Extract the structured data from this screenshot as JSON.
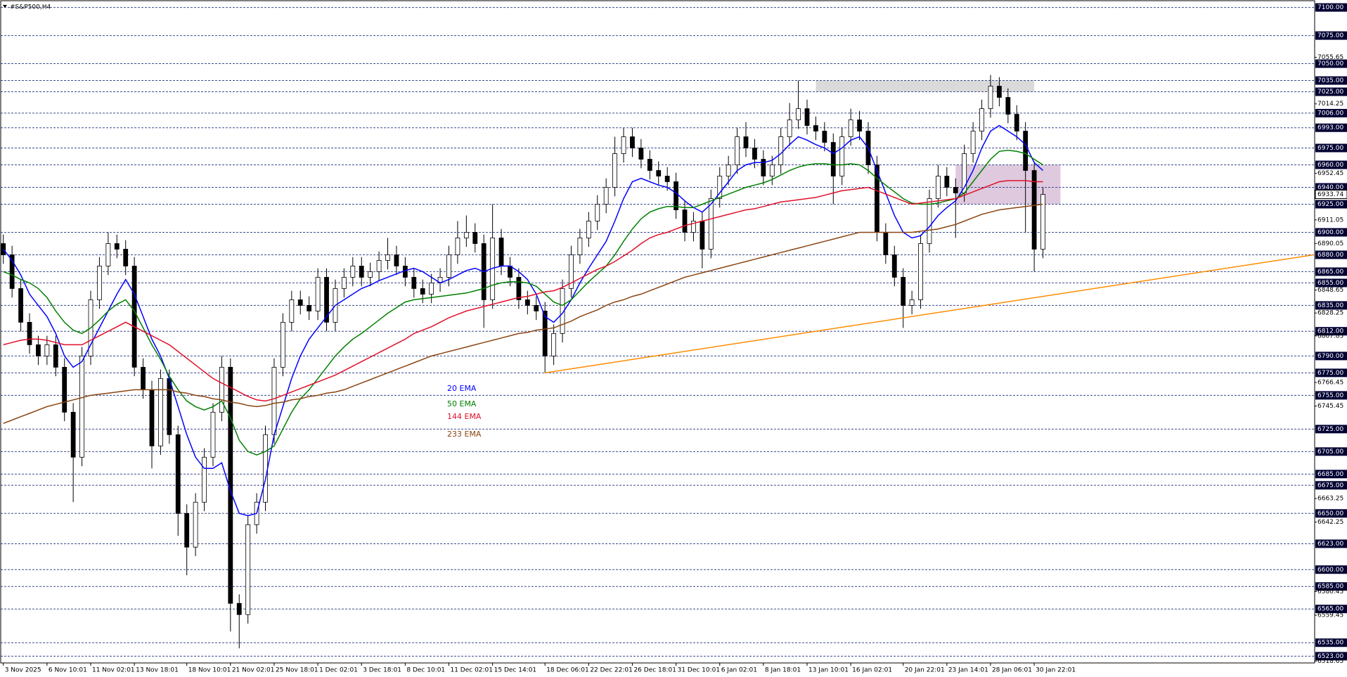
{
  "chart_data": {
    "type": "candlestick",
    "title": "#S&P500,H4",
    "categories": [
      "3 Nov 2025",
      null,
      null,
      null,
      null,
      "6 Nov 10:01",
      null,
      null,
      null,
      null,
      "11 Nov 02:01",
      null,
      null,
      null,
      null,
      "13 Nov 18:01",
      null,
      null,
      null,
      null,
      null,
      "18 Nov 10:01",
      null,
      null,
      null,
      null,
      "21 Nov 02:01",
      null,
      null,
      null,
      null,
      "25 Nov 18:01",
      null,
      null,
      null,
      null,
      "1 Dec 02:01",
      null,
      null,
      null,
      null,
      "3 Dec 18:01",
      null,
      null,
      null,
      null,
      "8 Dec 10:01",
      null,
      null,
      null,
      null,
      "11 Dec 02:01",
      null,
      null,
      null,
      null,
      "15 Dec 14:01",
      null,
      null,
      null,
      null,
      null,
      "18 Dec 06:01",
      null,
      null,
      null,
      null,
      "22 Dec 22:01",
      null,
      null,
      null,
      null,
      "26 Dec 18:01",
      null,
      null,
      null,
      null,
      "31 Dec 10:01",
      null,
      null,
      null,
      null,
      "6 Jan 02:01",
      null,
      null,
      null,
      null,
      "8 Jan 18:01",
      null,
      null,
      null,
      null,
      "13 Jan 10:01",
      null,
      null,
      null,
      null,
      "16 Jan 02:01",
      null,
      null,
      null,
      null,
      null,
      "20 Jan 22:01",
      null,
      null,
      null,
      null,
      "23 Jan 14:01",
      null,
      null,
      null,
      null,
      "28 Jan 06:01",
      null,
      null,
      null,
      null,
      "30 Jan 22:01",
      null
    ],
    "open": [
      6890,
      6880,
      6850,
      6820,
      6800,
      6790,
      6800,
      6780,
      6740,
      6700,
      6790,
      6840,
      6870,
      6890,
      6885,
      6870,
      6780,
      6760,
      6710,
      6770,
      6720,
      6650,
      6620,
      6660,
      6700,
      6740,
      6780,
      6570,
      6560,
      6640,
      6660,
      6720,
      6780,
      6820,
      6840,
      6835,
      6830,
      6860,
      6820,
      6850,
      6860,
      6870,
      6860,
      6865,
      6875,
      6880,
      6870,
      6860,
      6850,
      6845,
      6855,
      6860,
      6880,
      6895,
      6900,
      6890,
      6840,
      6895,
      6870,
      6860,
      6840,
      6835,
      6830,
      6790,
      6810,
      6850,
      6880,
      6895,
      6910,
      6925,
      6940,
      6970,
      6985,
      6975,
      6965,
      6955,
      6950,
      6945,
      6920,
      6900,
      6910,
      6885,
      6930,
      6950,
      6960,
      6985,
      6975,
      6965,
      6950,
      6960,
      6985,
      7000,
      7010,
      6995,
      6990,
      6980,
      6950,
      6985,
      7000,
      6990,
      6960,
      6900,
      6880,
      6860,
      6835,
      6840,
      6890,
      6930,
      6950,
      6940,
      6935,
      6970,
      6990,
      7010,
      7030,
      7020,
      7005,
      6990,
      6955,
      6885
    ],
    "high": [
      6898,
      6888,
      6858,
      6828,
      6808,
      6808,
      6808,
      6788,
      6748,
      6798,
      6848,
      6878,
      6900,
      6898,
      6893,
      6878,
      6788,
      6768,
      6778,
      6778,
      6728,
      6658,
      6668,
      6708,
      6748,
      6790,
      6788,
      6578,
      6648,
      6668,
      6728,
      6788,
      6828,
      6848,
      6848,
      6843,
      6868,
      6868,
      6858,
      6868,
      6878,
      6878,
      6873,
      6883,
      6895,
      6888,
      6878,
      6868,
      6858,
      6863,
      6868,
      6888,
      6910,
      6915,
      6908,
      6898,
      6925,
      6903,
      6878,
      6868,
      6848,
      6843,
      6838,
      6818,
      6858,
      6888,
      6903,
      6918,
      6933,
      6948,
      6985,
      6993,
      6993,
      6983,
      6973,
      6963,
      6958,
      6953,
      6928,
      6918,
      6918,
      6938,
      6958,
      6968,
      6993,
      6998,
      6983,
      6973,
      6968,
      6993,
      7015,
      7035,
      7018,
      7003,
      6998,
      6988,
      6993,
      7010,
      7008,
      6998,
      6968,
      6908,
      6888,
      6868,
      6848,
      6898,
      6938,
      6960,
      6958,
      6948,
      6978,
      6998,
      7018,
      7040,
      7038,
      7028,
      7013,
      6998,
      6963,
      6940
    ],
    "low": [
      6872,
      6842,
      6812,
      6792,
      6782,
      6782,
      6772,
      6732,
      6660,
      6692,
      6782,
      6832,
      6862,
      6877,
      6862,
      6772,
      6752,
      6690,
      6702,
      6712,
      6630,
      6595,
      6612,
      6652,
      6692,
      6732,
      6545,
      6530,
      6552,
      6632,
      6652,
      6712,
      6772,
      6812,
      6827,
      6822,
      6822,
      6812,
      6812,
      6842,
      6852,
      6852,
      6852,
      6857,
      6867,
      6862,
      6852,
      6842,
      6837,
      6837,
      6847,
      6852,
      6872,
      6887,
      6882,
      6815,
      6832,
      6862,
      6852,
      6832,
      6827,
      6822,
      6775,
      6782,
      6802,
      6842,
      6872,
      6887,
      6902,
      6917,
      6932,
      6962,
      6967,
      6957,
      6947,
      6942,
      6937,
      6912,
      6892,
      6892,
      6868,
      6877,
      6922,
      6942,
      6952,
      6967,
      6957,
      6942,
      6942,
      6952,
      6977,
      6992,
      6987,
      6982,
      6972,
      6925,
      6942,
      6977,
      6982,
      6952,
      6892,
      6872,
      6852,
      6815,
      6827,
      6832,
      6882,
      6922,
      6932,
      6895,
      6927,
      6962,
      6982,
      7002,
      7012,
      6997,
      6982,
      6900,
      6865,
      6877
    ],
    "close": [
      6880,
      6850,
      6820,
      6800,
      6790,
      6800,
      6780,
      6740,
      6700,
      6790,
      6840,
      6870,
      6890,
      6885,
      6870,
      6780,
      6760,
      6710,
      6770,
      6720,
      6650,
      6620,
      6660,
      6700,
      6740,
      6780,
      6570,
      6560,
      6640,
      6660,
      6720,
      6780,
      6820,
      6840,
      6835,
      6830,
      6860,
      6820,
      6850,
      6860,
      6870,
      6860,
      6865,
      6875,
      6880,
      6870,
      6860,
      6850,
      6845,
      6855,
      6860,
      6880,
      6895,
      6900,
      6890,
      6840,
      6895,
      6870,
      6860,
      6840,
      6835,
      6830,
      6790,
      6810,
      6850,
      6880,
      6895,
      6910,
      6925,
      6940,
      6970,
      6985,
      6975,
      6965,
      6955,
      6950,
      6945,
      6920,
      6900,
      6910,
      6885,
      6930,
      6950,
      6960,
      6985,
      6975,
      6965,
      6950,
      6960,
      6985,
      7000,
      7010,
      6995,
      6990,
      6980,
      6950,
      6985,
      7000,
      6990,
      6960,
      6900,
      6880,
      6860,
      6835,
      6840,
      6890,
      6930,
      6950,
      6940,
      6935,
      6970,
      6990,
      7010,
      7030,
      7020,
      7005,
      6990,
      6955,
      6885,
      6933.74
    ],
    "series": [
      {
        "name": "20 EMA",
        "color": "#0000ff",
        "values": [
          6885,
          6875,
          6862,
          6845,
          6835,
          6825,
          6810,
          6790,
          6780,
          6785,
          6800,
          6815,
          6830,
          6845,
          6858,
          6845,
          6825,
          6805,
          6790,
          6770,
          6745,
          6720,
          6700,
          6690,
          6690,
          6695,
          6670,
          6650,
          6648,
          6650,
          6680,
          6720,
          6745,
          6770,
          6790,
          6805,
          6815,
          6825,
          6835,
          6840,
          6845,
          6850,
          6853,
          6857,
          6860,
          6863,
          6866,
          6868,
          6865,
          6860,
          6855,
          6858,
          6862,
          6866,
          6868,
          6865,
          6868,
          6870,
          6870,
          6865,
          6858,
          6845,
          6825,
          6820,
          6828,
          6840,
          6855,
          6868,
          6880,
          6892,
          6910,
          6930,
          6945,
          6948,
          6945,
          6942,
          6940,
          6935,
          6928,
          6922,
          6918,
          6925,
          6935,
          6945,
          6955,
          6960,
          6962,
          6962,
          6964,
          6970,
          6978,
          6985,
          6982,
          6978,
          6975,
          6970,
          6975,
          6982,
          6985,
          6975,
          6955,
          6935,
          6915,
          6900,
          6895,
          6897,
          6905,
          6915,
          6922,
          6928,
          6940,
          6955,
          6975,
          6990,
          6995,
          6990,
          6985,
          6978,
          6962,
          6955
        ]
      },
      {
        "name": "50 EMA",
        "color": "#008000",
        "values": [
          6865,
          6862,
          6858,
          6855,
          6850,
          6842,
          6830,
          6820,
          6813,
          6810,
          6815,
          6822,
          6830,
          6836,
          6840,
          6830,
          6815,
          6800,
          6787,
          6772,
          6760,
          6750,
          6745,
          6742,
          6745,
          6750,
          6735,
          6715,
          6705,
          6702,
          6705,
          6710,
          6725,
          6740,
          6752,
          6760,
          6770,
          6780,
          6790,
          6798,
          6805,
          6810,
          6816,
          6822,
          6828,
          6833,
          6838,
          6840,
          6841,
          6842,
          6843,
          6844,
          6845,
          6846,
          6848,
          6850,
          6853,
          6855,
          6856,
          6856,
          6855,
          6852,
          6845,
          6838,
          6835,
          6840,
          6848,
          6856,
          6863,
          6870,
          6880,
          6892,
          6903,
          6912,
          6918,
          6921,
          6923,
          6923,
          6922,
          6922,
          6925,
          6928,
          6931,
          6934,
          6937,
          6940,
          6942,
          6944,
          6947,
          6951,
          6955,
          6958,
          6960,
          6961,
          6961,
          6960,
          6960,
          6961,
          6960,
          6955,
          6948,
          6942,
          6936,
          6930,
          6926,
          6925,
          6925,
          6926,
          6928,
          6930,
          6935,
          6945,
          6955,
          6965,
          6972,
          6973,
          6972,
          6970,
          6965,
          6960
        ]
      },
      {
        "name": "144 EMA",
        "color": "#e0102a",
        "values": [
          6800,
          6802,
          6804,
          6805,
          6805,
          6804,
          6802,
          6800,
          6800,
          6800,
          6804,
          6808,
          6812,
          6816,
          6820,
          6816,
          6812,
          6808,
          6804,
          6800,
          6794,
          6788,
          6782,
          6776,
          6770,
          6766,
          6762,
          6758,
          6754,
          6751,
          6750,
          6752,
          6755,
          6758,
          6761,
          6764,
          6767,
          6770,
          6773,
          6777,
          6781,
          6785,
          6789,
          6793,
          6797,
          6801,
          6805,
          6810,
          6813,
          6816,
          6820,
          6824,
          6827,
          6830,
          6832,
          6834,
          6836,
          6838,
          6840,
          6842,
          6843,
          6845,
          6847,
          6848,
          6851,
          6855,
          6859,
          6863,
          6867,
          6870,
          6874,
          6879,
          6884,
          6890,
          6895,
          6898,
          6900,
          6903,
          6906,
          6908,
          6910,
          6912,
          6914,
          6916,
          6918,
          6920,
          6921,
          6923,
          6925,
          6927,
          6928,
          6929,
          6930,
          6931,
          6933,
          6935,
          6937,
          6938,
          6939,
          6940,
          6937,
          6934,
          6931,
          6928,
          6925,
          6926,
          6927,
          6928,
          6929,
          6930,
          6933,
          6936,
          6939,
          6942,
          6945,
          6946,
          6946,
          6946,
          6945,
          6945
        ]
      },
      {
        "name": "233 EMA",
        "color": "#8b4513",
        "values": [
          6730,
          6733,
          6736,
          6739,
          6742,
          6745,
          6747,
          6749,
          6751,
          6753,
          6755,
          6756,
          6757,
          6758,
          6759,
          6760,
          6760,
          6760,
          6760,
          6760,
          6758,
          6757,
          6755,
          6754,
          6752,
          6751,
          6749,
          6748,
          6746,
          6745,
          6746,
          6748,
          6749,
          6751,
          6752,
          6754,
          6755,
          6757,
          6758,
          6760,
          6763,
          6766,
          6769,
          6772,
          6775,
          6778,
          6781,
          6784,
          6787,
          6790,
          6792,
          6794,
          6796,
          6798,
          6800,
          6802,
          6804,
          6806,
          6808,
          6810,
          6811,
          6813,
          6814,
          6815,
          6818,
          6821,
          6825,
          6828,
          6831,
          6835,
          6838,
          6840,
          6843,
          6845,
          6848,
          6851,
          6854,
          6857,
          6860,
          6862,
          6864,
          6866,
          6868,
          6870,
          6872,
          6874,
          6876,
          6878,
          6880,
          6882,
          6884,
          6886,
          6888,
          6890,
          6892,
          6894,
          6896,
          6898,
          6900,
          6900,
          6900,
          6900,
          6900,
          6900,
          6900,
          6901,
          6902,
          6903,
          6905,
          6907,
          6910,
          6913,
          6916,
          6918,
          6920,
          6921,
          6922,
          6923,
          6924,
          6925
        ]
      }
    ],
    "trendline": {
      "color": "#ff8c00",
      "x": [
        62,
        150
      ],
      "values": [
        6775,
        6880
      ]
    },
    "zones": [
      {
        "color": "#d3d3d3",
        "x": [
          93,
          118
        ],
        "values": [
          7025,
          7035
        ]
      },
      {
        "color": "#d8bfd8",
        "x": [
          109,
          121
        ],
        "values": [
          6925,
          6960
        ]
      }
    ],
    "xlim": [
      -0.3,
      150.1
    ],
    "ylim": [
      6517,
      7106
    ],
    "levels": [
      {
        "value": 7100,
        "label": "7100.00"
      },
      {
        "value": 7075,
        "label": "7075.00"
      },
      {
        "value": 7050,
        "label": "7050.00"
      },
      {
        "value": 7035,
        "label": "7035.00"
      },
      {
        "value": 7025,
        "label": "7025.00"
      },
      {
        "value": 7006,
        "label": "7006.00"
      },
      {
        "value": 6993,
        "label": "6993.00"
      },
      {
        "value": 6975,
        "label": "6975.00"
      },
      {
        "value": 6960,
        "label": "6960.00"
      },
      {
        "value": 6940,
        "label": "6940.00"
      },
      {
        "value": 6925,
        "label": "6925.00"
      },
      {
        "value": 6900,
        "label": "6900.00"
      },
      {
        "value": 6880,
        "label": "6880.00"
      },
      {
        "value": 6865,
        "label": "6865.00"
      },
      {
        "value": 6855,
        "label": "6855.00"
      },
      {
        "value": 6835,
        "label": "6835.00"
      },
      {
        "value": 6812,
        "label": "6812.00"
      },
      {
        "value": 6790,
        "label": "6790.00"
      },
      {
        "value": 6775,
        "label": "6775.00"
      },
      {
        "value": 6755,
        "label": "6755.00"
      },
      {
        "value": 6725,
        "label": "6725.00"
      },
      {
        "value": 6705,
        "label": "6705.00"
      },
      {
        "value": 6685,
        "label": "6685.00"
      },
      {
        "value": 6675,
        "label": "6675.00"
      },
      {
        "value": 6650,
        "label": "6650.00"
      },
      {
        "value": 6623,
        "label": "6623.00"
      },
      {
        "value": 6600,
        "label": "6600.00"
      },
      {
        "value": 6585,
        "label": "6585.00"
      },
      {
        "value": 6565,
        "label": "6565.00"
      },
      {
        "value": 6535,
        "label": "6535.00"
      },
      {
        "value": 6523,
        "label": "6523.00"
      }
    ],
    "yticks": [
      7055.65,
      7014.25,
      6952.45,
      6911.05,
      6890.05,
      6848.65,
      6828.25,
      6807.85,
      6766.45,
      6745.45,
      6663.25,
      6642.25,
      6580.45,
      6559.45,
      6518.65
    ],
    "last_price": 6933.74
  }
}
